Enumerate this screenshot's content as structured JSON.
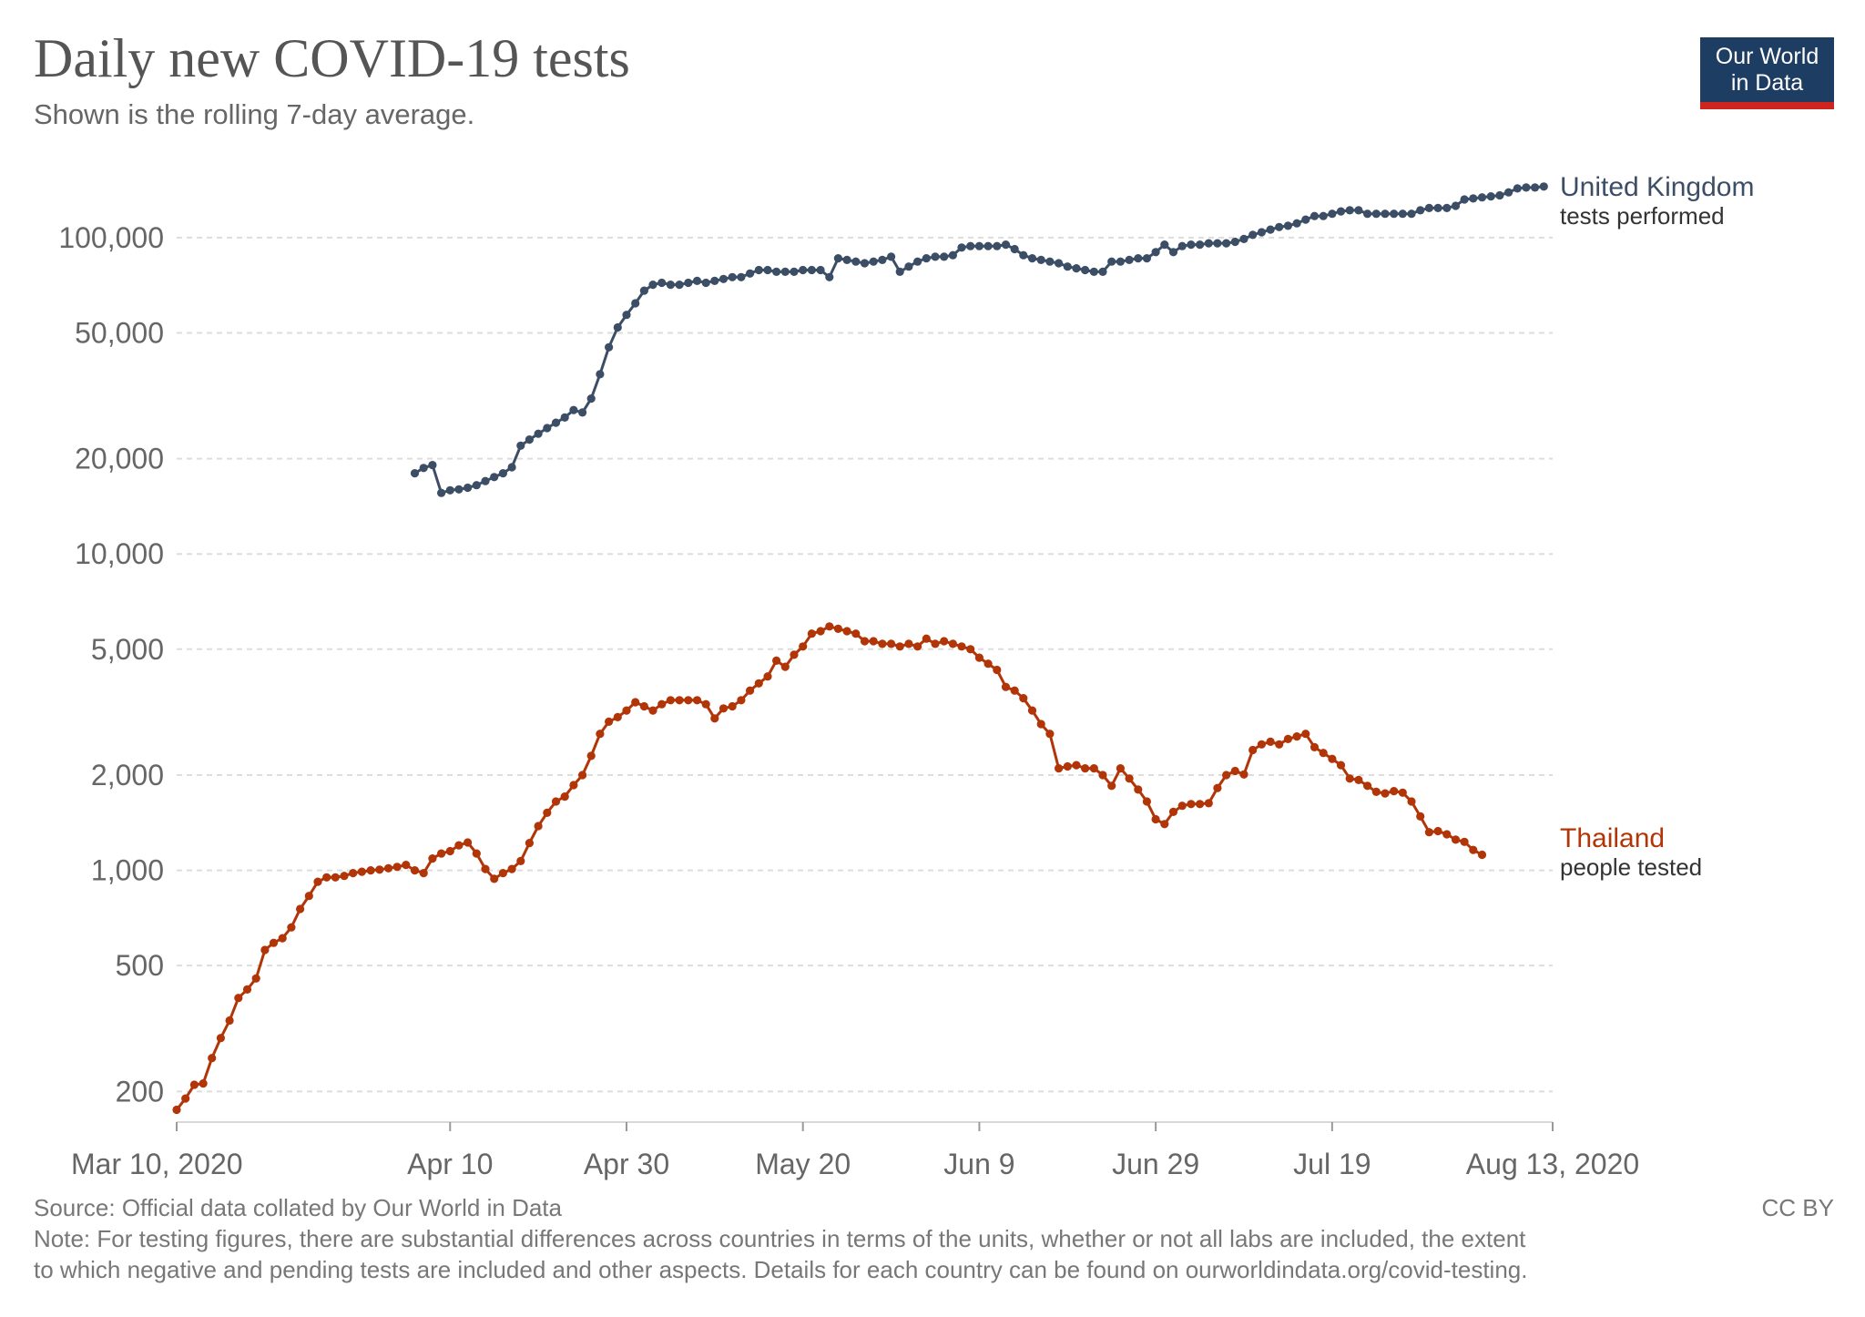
{
  "header": {
    "title": "Daily new COVID-19 tests",
    "subtitle": "Shown is the rolling 7-day average."
  },
  "logo": {
    "line1": "Our World",
    "line2": "in Data"
  },
  "footer": {
    "source": "Source: Official data collated by Our World in Data",
    "license": "CC BY",
    "note_line1": "Note: For testing figures, there are substantial differences across countries in terms of the units, whether or not all labs are included, the extent",
    "note_line2": "to which negative and pending tests are included and other aspects. Details for each country can be found on ourworldindata.org/covid-testing."
  },
  "chart_data": {
    "type": "line",
    "title": "Daily new COVID-19 tests",
    "subtitle": "Shown is the rolling 7-day average.",
    "yscale": "log",
    "ylim": [
      160,
      160000
    ],
    "xlim": [
      "2020-03-10",
      "2020-08-13"
    ],
    "grid": "horizontal dashed",
    "legend": "line-end labels",
    "y_ticks": [
      {
        "value": 200,
        "label": "200"
      },
      {
        "value": 500,
        "label": "500"
      },
      {
        "value": 1000,
        "label": "1,000"
      },
      {
        "value": 2000,
        "label": "2,000"
      },
      {
        "value": 5000,
        "label": "5,000"
      },
      {
        "value": 10000,
        "label": "10,000"
      },
      {
        "value": 20000,
        "label": "20,000"
      },
      {
        "value": 50000,
        "label": "50,000"
      },
      {
        "value": 100000,
        "label": "100,000"
      }
    ],
    "x_ticks": [
      {
        "date": "2020-03-10",
        "label": "Mar 10, 2020"
      },
      {
        "date": "2020-04-10",
        "label": "Apr 10"
      },
      {
        "date": "2020-04-30",
        "label": "Apr 30"
      },
      {
        "date": "2020-05-20",
        "label": "May 20"
      },
      {
        "date": "2020-06-09",
        "label": "Jun 9"
      },
      {
        "date": "2020-06-29",
        "label": "Jun 29"
      },
      {
        "date": "2020-07-19",
        "label": "Jul 19"
      },
      {
        "date": "2020-08-13",
        "label": "Aug 13, 2020"
      }
    ],
    "series": [
      {
        "name": "United Kingdom",
        "sublabel": "tests performed",
        "color": "#3c4e66",
        "start": "2020-04-06",
        "values": [
          18000,
          18700,
          19100,
          15600,
          15900,
          16000,
          16200,
          16500,
          17000,
          17500,
          18000,
          18800,
          22000,
          23000,
          24000,
          25000,
          26000,
          27000,
          28500,
          28000,
          31000,
          37000,
          45000,
          52000,
          57000,
          62000,
          68000,
          71000,
          72000,
          71000,
          71000,
          72000,
          73000,
          72000,
          73000,
          74000,
          75000,
          75000,
          77000,
          79000,
          79000,
          78000,
          78000,
          78000,
          79000,
          79000,
          79000,
          75000,
          86000,
          85000,
          84000,
          83000,
          84000,
          85000,
          87000,
          78000,
          81000,
          84000,
          86000,
          87000,
          87000,
          88000,
          93000,
          94000,
          94000,
          94000,
          94000,
          95000,
          92000,
          88000,
          86000,
          85000,
          84000,
          83000,
          81000,
          80000,
          79000,
          78000,
          78000,
          84000,
          84000,
          85000,
          86000,
          86000,
          90000,
          95000,
          90000,
          94000,
          95000,
          95000,
          96000,
          96000,
          96000,
          97000,
          99000,
          102000,
          104000,
          106000,
          108000,
          109000,
          111000,
          114000,
          117000,
          117000,
          119000,
          121000,
          122000,
          122000,
          119000,
          119000,
          119000,
          119000,
          119000,
          119000,
          122000,
          124000,
          124000,
          124000,
          126000,
          132000,
          133000,
          134000,
          135000,
          136000,
          139000,
          143000,
          144000,
          144000,
          145000
        ]
      },
      {
        "name": "Thailand",
        "sublabel": "people tested",
        "color": "#b13507",
        "start": "2020-03-10",
        "values": [
          175,
          190,
          210,
          212,
          255,
          295,
          335,
          395,
          420,
          455,
          560,
          590,
          610,
          660,
          755,
          830,
          920,
          950,
          950,
          960,
          980,
          990,
          1000,
          1005,
          1015,
          1025,
          1040,
          1000,
          980,
          1090,
          1130,
          1150,
          1200,
          1225,
          1130,
          1010,
          940,
          980,
          1010,
          1070,
          1220,
          1380,
          1520,
          1650,
          1710,
          1860,
          2000,
          2300,
          2700,
          2950,
          3050,
          3200,
          3400,
          3300,
          3200,
          3350,
          3450,
          3450,
          3450,
          3450,
          3350,
          3020,
          3250,
          3300,
          3450,
          3700,
          3900,
          4100,
          4600,
          4400,
          4800,
          5100,
          5600,
          5700,
          5900,
          5800,
          5700,
          5600,
          5300,
          5300,
          5200,
          5200,
          5100,
          5200,
          5100,
          5400,
          5200,
          5300,
          5200,
          5100,
          5000,
          4700,
          4500,
          4300,
          3800,
          3700,
          3500,
          3200,
          2900,
          2700,
          2100,
          2130,
          2150,
          2100,
          2100,
          2000,
          1850,
          2100,
          1950,
          1800,
          1650,
          1450,
          1400,
          1530,
          1600,
          1620,
          1620,
          1630,
          1820,
          2000,
          2060,
          2010,
          2400,
          2500,
          2550,
          2500,
          2600,
          2650,
          2700,
          2450,
          2350,
          2250,
          2150,
          1950,
          1930,
          1850,
          1770,
          1750,
          1780,
          1760,
          1650,
          1480,
          1320,
          1330,
          1300,
          1250,
          1230,
          1160,
          1120
        ]
      }
    ]
  }
}
